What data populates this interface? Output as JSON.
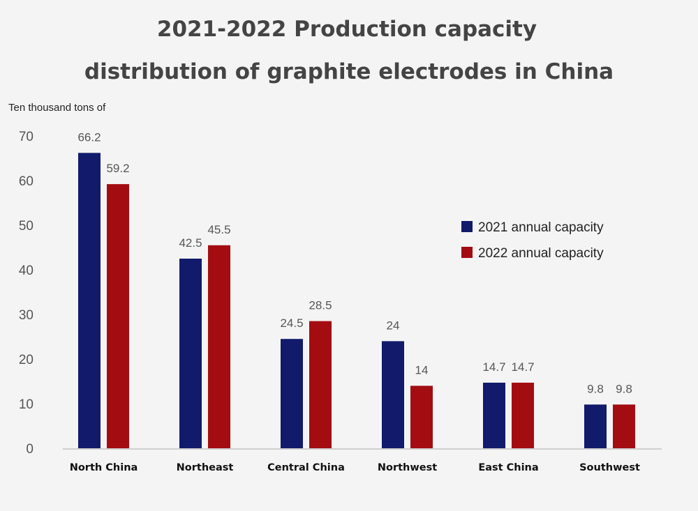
{
  "chart_data": {
    "type": "bar",
    "title": "2021-2022 Production capacity",
    "subtitle": "distribution of graphite electrodes in China",
    "ylabel": "Ten thousand tons of",
    "xlabel": "",
    "categories": [
      "North China",
      "Northeast",
      "Central China",
      "Northwest",
      "East China",
      "Southwest"
    ],
    "series": [
      {
        "name": "2021 annual capacity",
        "color": "#111a6b",
        "values": [
          66.2,
          42.5,
          24.5,
          24,
          14.7,
          9.8
        ]
      },
      {
        "name": "2022 annual capacity",
        "color": "#a30d12",
        "values": [
          59.2,
          45.5,
          28.5,
          14,
          14.7,
          9.8
        ]
      }
    ],
    "ylim": [
      0,
      70
    ],
    "yticks": [
      0,
      10,
      20,
      30,
      40,
      50,
      60,
      70
    ],
    "grid": false,
    "legend": "right"
  }
}
